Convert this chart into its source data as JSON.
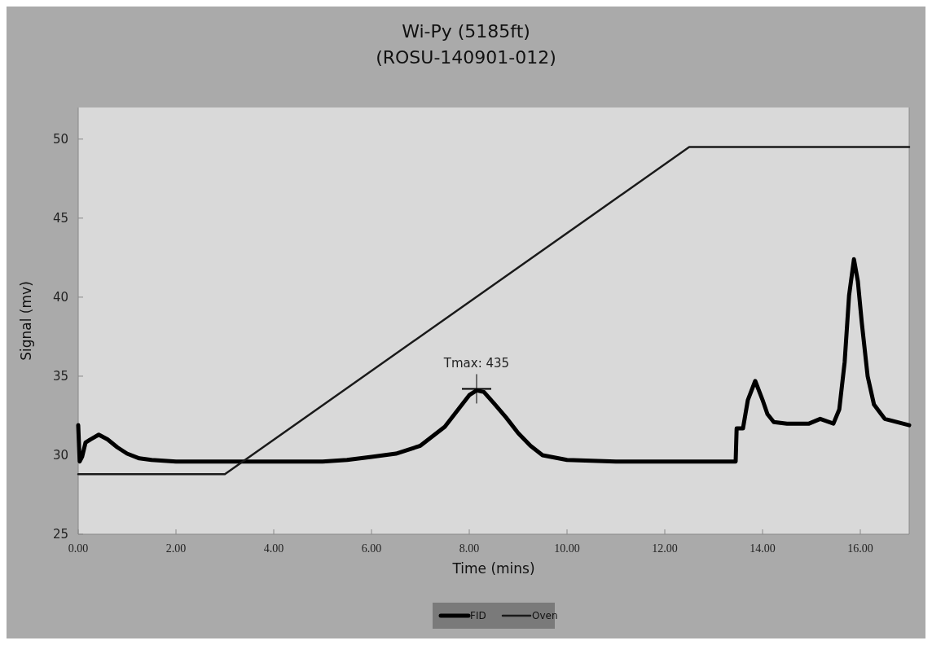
{
  "chart_data": {
    "type": "line",
    "title": "Wi-Py (5185ft)",
    "subtitle": "(ROSU-140901-012)",
    "xlabel": "Time (mins)",
    "ylabel": "Signal (mv)",
    "xlim": [
      0,
      17
    ],
    "xticks": [
      {
        "value": 0,
        "label": "0.00"
      },
      {
        "value": 2,
        "label": "2.00"
      },
      {
        "value": 4,
        "label": "4.00"
      },
      {
        "value": 6,
        "label": "6.00"
      },
      {
        "value": 8,
        "label": "8.00"
      },
      {
        "value": 10,
        "label": "10.00"
      },
      {
        "value": 12,
        "label": "12.00"
      },
      {
        "value": 14,
        "label": "14.00"
      },
      {
        "value": 16,
        "label": "16.00"
      }
    ],
    "ylim": [
      25,
      52
    ],
    "yticks": [
      25,
      30,
      35,
      40,
      45,
      50
    ],
    "grid": false,
    "legend": "bottom",
    "marker": "none",
    "line_style": "solid",
    "annotations": [
      {
        "text": "Tmax: 435",
        "x": 8.15,
        "y": 34.2
      }
    ],
    "series": [
      {
        "name": "FID",
        "color": "#000000",
        "x": [
          0,
          0.03,
          0.08,
          0.15,
          0.25,
          0.42,
          0.6,
          0.8,
          1.0,
          1.25,
          1.5,
          2.0,
          3.0,
          4.0,
          5.0,
          5.5,
          6.0,
          6.5,
          7.0,
          7.5,
          7.8,
          8.0,
          8.15,
          8.3,
          8.5,
          8.75,
          9.0,
          9.25,
          9.5,
          10.0,
          11.0,
          12.0,
          13.0,
          13.45,
          13.47,
          13.6,
          13.7,
          13.85,
          14.0,
          14.1,
          14.23,
          14.5,
          14.95,
          15.18,
          15.45,
          15.57,
          15.68,
          15.77,
          15.87,
          15.95,
          16.03,
          16.15,
          16.28,
          16.5,
          17.0
        ],
        "values": [
          31.9,
          29.6,
          29.9,
          30.8,
          31.0,
          31.3,
          31.0,
          30.5,
          30.1,
          29.8,
          29.7,
          29.6,
          29.6,
          29.6,
          29.6,
          29.7,
          29.9,
          30.1,
          30.6,
          31.8,
          33.0,
          33.8,
          34.1,
          34.0,
          33.3,
          32.4,
          31.4,
          30.6,
          30.0,
          29.7,
          29.6,
          29.6,
          29.6,
          29.6,
          31.7,
          31.7,
          33.5,
          34.7,
          33.5,
          32.6,
          32.1,
          32.0,
          32.0,
          32.3,
          32.0,
          32.9,
          35.9,
          40.1,
          42.4,
          41.0,
          38.4,
          35.0,
          33.2,
          32.3,
          31.9
        ]
      },
      {
        "name": "Oven",
        "color": "#1a1a1a",
        "x": [
          0,
          3.0,
          12.5,
          17.0
        ],
        "values": [
          28.8,
          28.8,
          49.5,
          49.5
        ]
      }
    ]
  }
}
